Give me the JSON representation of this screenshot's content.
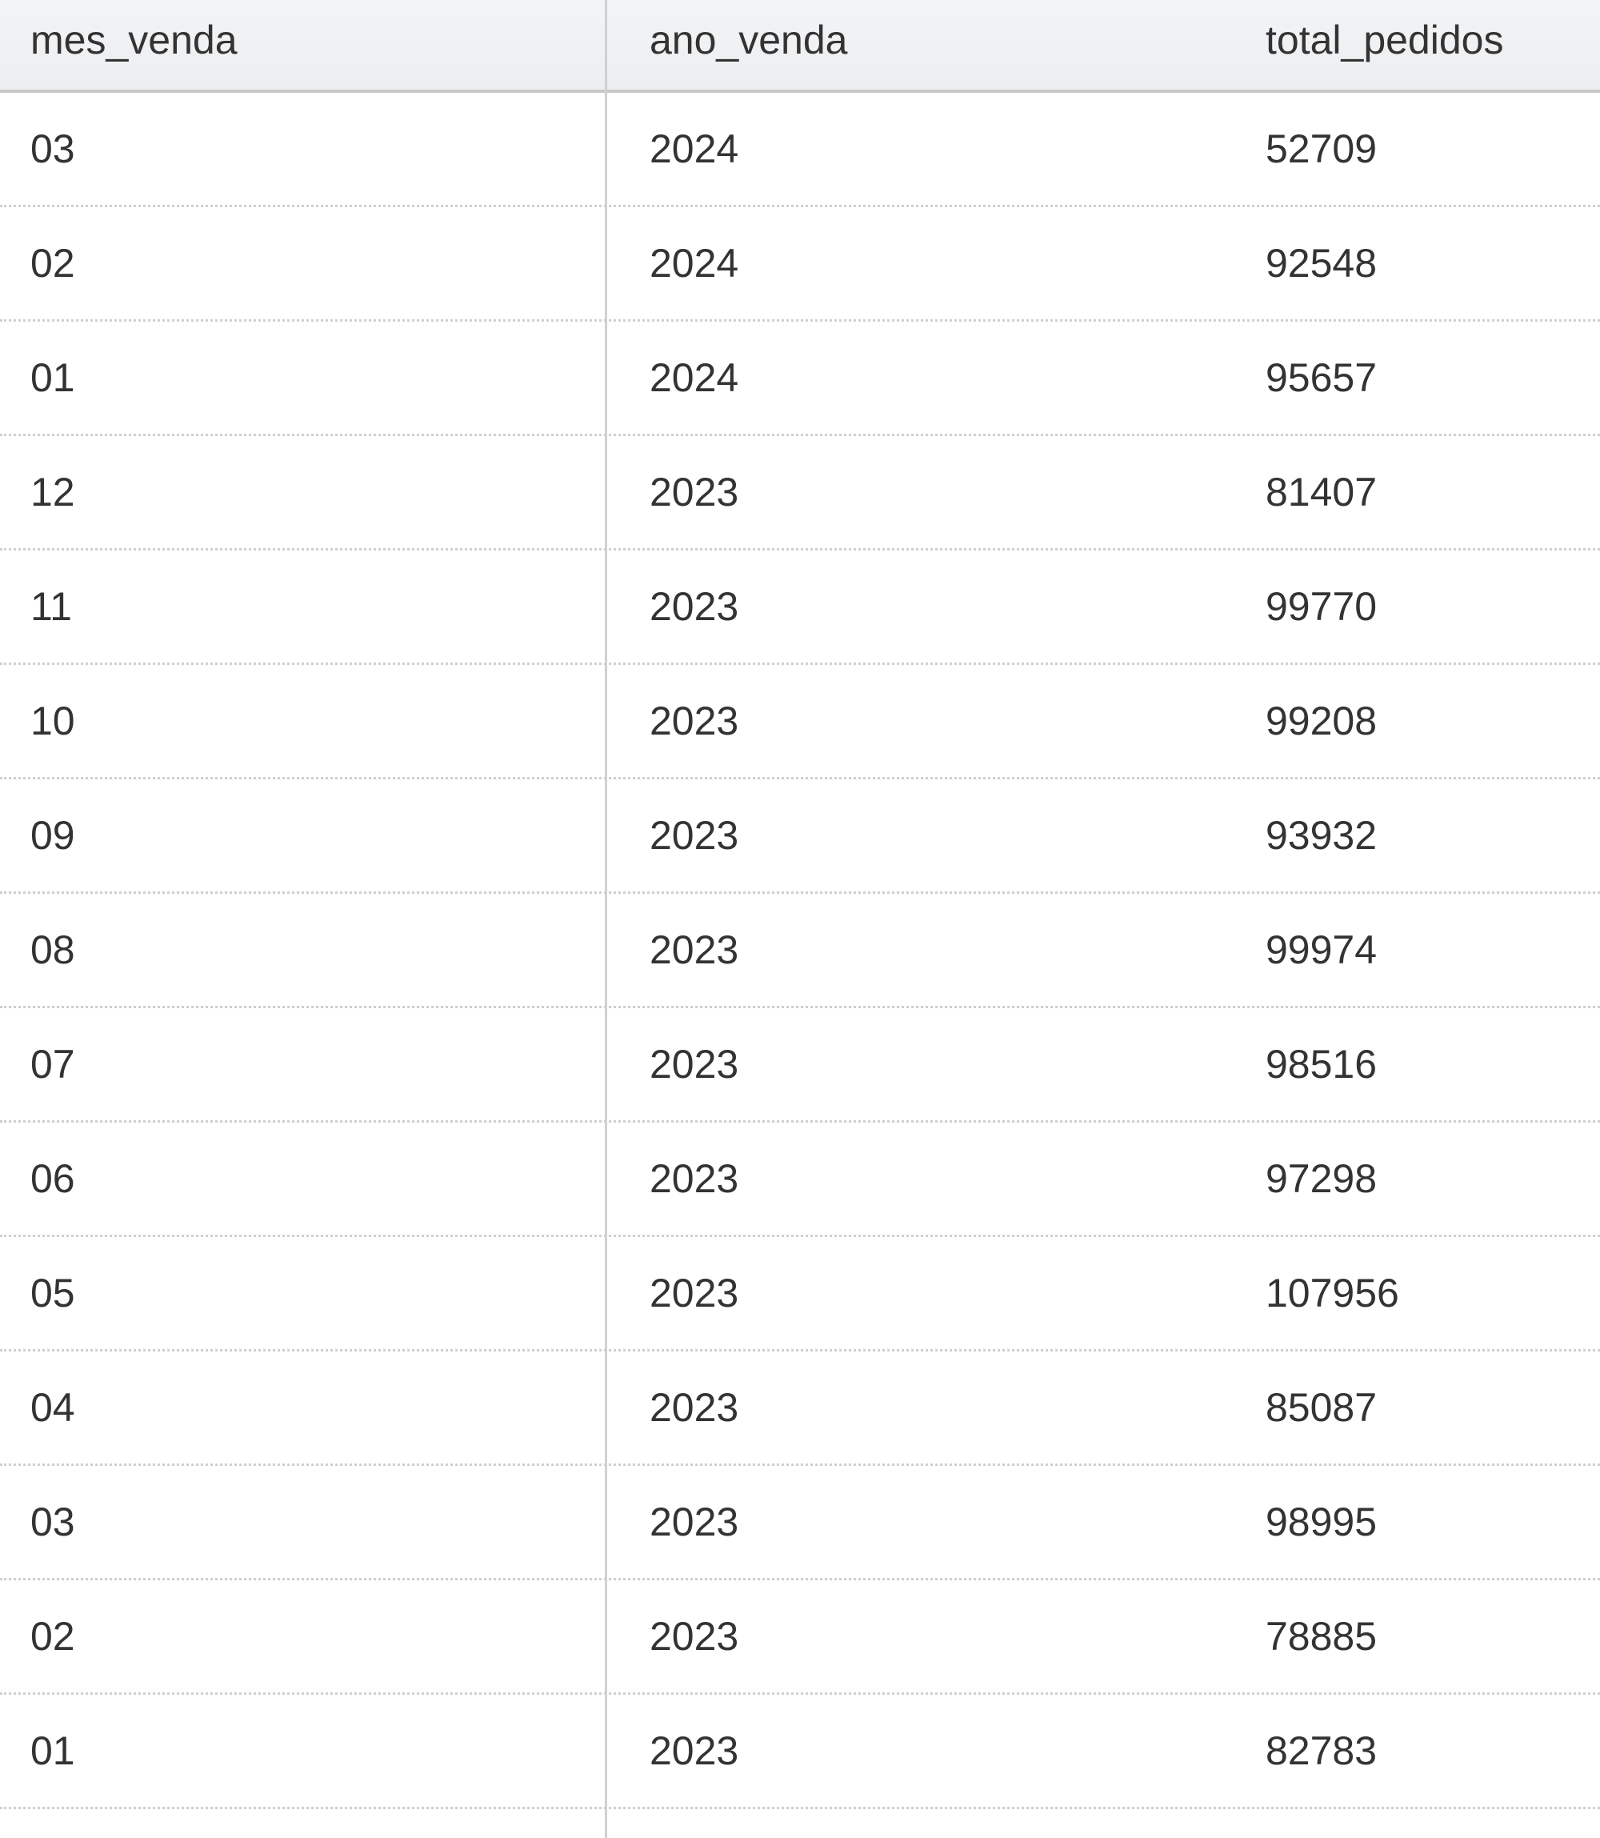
{
  "table": {
    "columns": [
      "mes_venda",
      "ano_venda",
      "total_pedidos"
    ],
    "rows": [
      [
        "03",
        "2024",
        "52709"
      ],
      [
        "02",
        "2024",
        "92548"
      ],
      [
        "01",
        "2024",
        "95657"
      ],
      [
        "12",
        "2023",
        "81407"
      ],
      [
        "11",
        "2023",
        "99770"
      ],
      [
        "10",
        "2023",
        "99208"
      ],
      [
        "09",
        "2023",
        "93932"
      ],
      [
        "08",
        "2023",
        "99974"
      ],
      [
        "07",
        "2023",
        "98516"
      ],
      [
        "06",
        "2023",
        "97298"
      ],
      [
        "05",
        "2023",
        "107956"
      ],
      [
        "04",
        "2023",
        "85087"
      ],
      [
        "03",
        "2023",
        "98995"
      ],
      [
        "02",
        "2023",
        "78885"
      ],
      [
        "01",
        "2023",
        "82783"
      ]
    ]
  }
}
